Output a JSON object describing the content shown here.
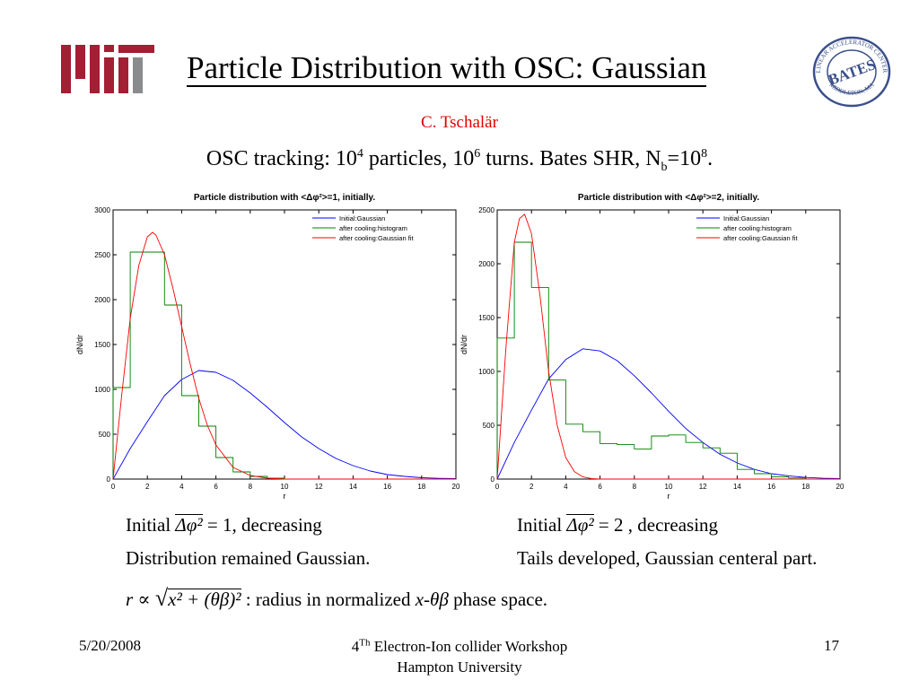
{
  "slide": {
    "title": "Particle Distribution with OSC: Gaussian",
    "author": "C. Tschalär",
    "subtitle": {
      "part1": "OSC tracking: 10",
      "sup1": "4",
      "part2": " particles, 10",
      "sup2": "6",
      "part3": " turns. Bates SHR, N",
      "sub1": "b",
      "part4": "=10",
      "sup3": "8",
      "part5": "."
    },
    "logos": {
      "left": "mit-logo",
      "right_text_top": "LINEAR ACCELERATOR CENTER",
      "right_text_bottom": "MIDDLETON, MA",
      "right_center": "BATES"
    }
  },
  "notes": {
    "left_line1_prefix": "Initial",
    "left_line1_value": "= 1,",
    "left_line1_suffix": "decreasing",
    "left_line2": "Distribution remained Gaussian.",
    "right_line1_prefix": "Initial",
    "right_line1_value": "= 2 ,",
    "right_line1_suffix": "decreasing",
    "right_line2": "Tails developed,  Gaussian centeral part.",
    "formula_lhs": "r ∝",
    "formula_rad": "x² + (θβ)²",
    "formula_suffix": ": radius in normalized",
    "formula_space": "x-θβ",
    "formula_end": "phase space.",
    "delta_phi_sq": "Δφ²"
  },
  "footer": {
    "date": "5/20/2008",
    "event_prefix": "4",
    "event_sup": "Th",
    "event_suffix": " Electron-Ion collider Workshop",
    "venue": "Hampton University",
    "page": "17"
  },
  "colors": {
    "initial": "#0000ff",
    "histogram": "#008000",
    "fit": "#ff0000",
    "author": "#e00000"
  },
  "chart_data": [
    {
      "type": "line",
      "title": "Particle distribution with <Δφ²>=1, initially.",
      "xlabel": "r",
      "ylabel": "dN/dr",
      "xlim": [
        0,
        20
      ],
      "ylim": [
        0,
        3000
      ],
      "xticks": [
        0,
        2,
        4,
        6,
        8,
        10,
        12,
        14,
        16,
        18,
        20
      ],
      "yticks": [
        0,
        500,
        1000,
        1500,
        2000,
        2500,
        3000
      ],
      "legend_position": "top-right",
      "series": [
        {
          "name": "Initial:Gaussian",
          "color": "#0000ff",
          "style": "curve",
          "x": [
            0,
            1,
            2,
            3,
            4,
            5,
            6,
            7,
            8,
            9,
            10,
            11,
            12,
            13,
            14,
            15,
            16,
            17,
            18,
            19,
            20
          ],
          "y": [
            0,
            340,
            640,
            930,
            1110,
            1210,
            1190,
            1100,
            960,
            800,
            630,
            470,
            340,
            230,
            150,
            90,
            50,
            30,
            15,
            8,
            5
          ]
        },
        {
          "name": "after cooling:histogram",
          "color": "#008000",
          "style": "step",
          "edges": [
            0,
            1,
            3,
            4,
            5,
            6,
            7,
            8,
            9,
            10,
            20
          ],
          "values": [
            1020,
            2530,
            1940,
            930,
            590,
            240,
            80,
            30,
            10,
            0
          ]
        },
        {
          "name": "after cooling:Gaussian fit",
          "color": "#ff0000",
          "style": "curve",
          "x": [
            0,
            0.5,
            1,
            1.5,
            2,
            2.3,
            2.5,
            3,
            3.5,
            4,
            4.5,
            5,
            5.5,
            6,
            7,
            8,
            9,
            10,
            20
          ],
          "y": [
            0,
            930,
            1790,
            2380,
            2700,
            2750,
            2720,
            2500,
            2120,
            1700,
            1280,
            900,
            600,
            380,
            130,
            40,
            10,
            0,
            0
          ]
        }
      ]
    },
    {
      "type": "line",
      "title": "Particle distribution with <Δφ²>=2, initially.",
      "xlabel": "r",
      "ylabel": "dN/dr",
      "xlim": [
        0,
        20
      ],
      "ylim": [
        0,
        2500
      ],
      "xticks": [
        0,
        2,
        4,
        6,
        8,
        10,
        12,
        14,
        16,
        18,
        20
      ],
      "yticks": [
        0,
        500,
        1000,
        1500,
        2000,
        2500
      ],
      "legend_position": "top-right",
      "series": [
        {
          "name": "Initial:Gaussian",
          "color": "#0000ff",
          "style": "curve",
          "x": [
            0,
            1,
            2,
            3,
            4,
            5,
            6,
            7,
            8,
            9,
            10,
            11,
            12,
            13,
            14,
            15,
            16,
            17,
            18,
            19,
            20
          ],
          "y": [
            0,
            340,
            640,
            930,
            1110,
            1210,
            1190,
            1100,
            960,
            800,
            630,
            470,
            340,
            230,
            150,
            90,
            50,
            30,
            15,
            8,
            5
          ]
        },
        {
          "name": "after cooling:histogram",
          "color": "#008000",
          "style": "step",
          "edges": [
            0,
            1,
            2,
            3,
            4,
            5,
            6,
            7,
            8,
            9,
            10,
            11,
            12,
            13,
            14,
            15,
            16,
            17,
            18,
            20
          ],
          "values": [
            1310,
            2200,
            1780,
            920,
            510,
            440,
            330,
            320,
            280,
            400,
            410,
            340,
            290,
            240,
            90,
            50,
            20,
            10,
            0
          ]
        },
        {
          "name": "after cooling:Gaussian fit",
          "color": "#ff0000",
          "style": "curve",
          "x": [
            0,
            0.5,
            1,
            1.3,
            1.6,
            2,
            2.5,
            3,
            3.5,
            4,
            4.5,
            5,
            5.5,
            6,
            7,
            20
          ],
          "y": [
            0,
            1200,
            2200,
            2420,
            2460,
            2280,
            1700,
            1000,
            500,
            200,
            70,
            20,
            5,
            0,
            0,
            0
          ]
        }
      ]
    }
  ]
}
